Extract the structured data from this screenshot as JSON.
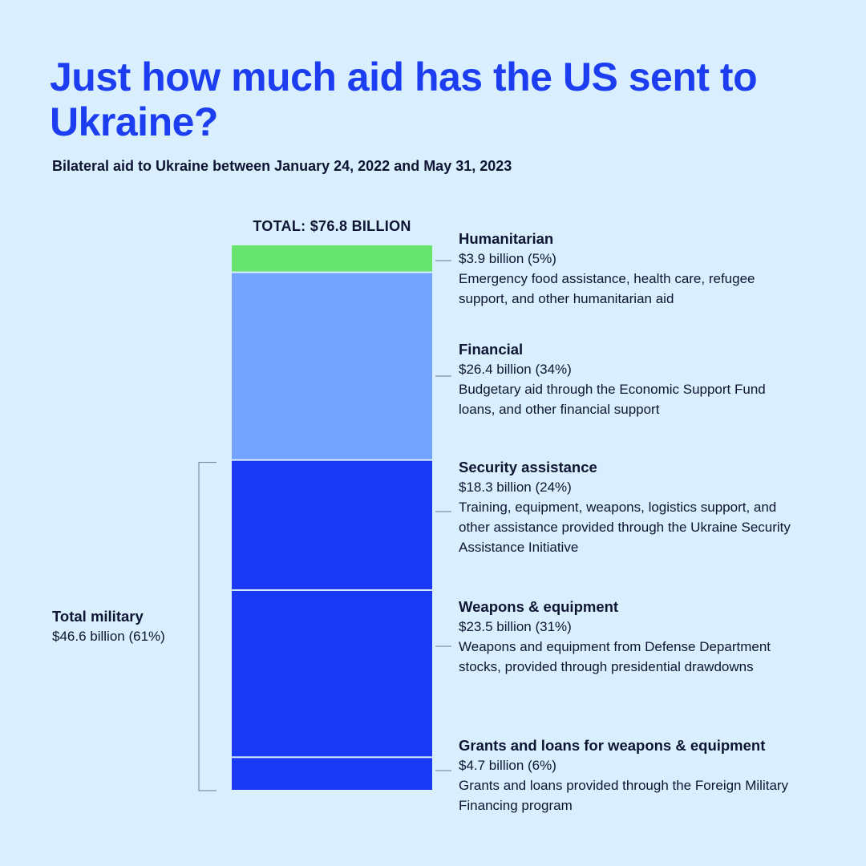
{
  "title": "Just how much aid has the US sent to Ukraine?",
  "subtitle": "Bilateral aid to Ukraine between January 24, 2022 and May 31, 2023",
  "total_label": "TOTAL: $76.8 BILLION",
  "colors": {
    "humanitarian": "#66e46e",
    "financial": "#73a2ff",
    "military": "#1a39f4",
    "title": "#1c3ef0",
    "background": "#d9effd"
  },
  "chart_data": {
    "type": "bar",
    "stacked": true,
    "unit": "billion USD",
    "total": 76.8,
    "categories": [
      "Humanitarian",
      "Financial",
      "Security assistance",
      "Weapons & equipment",
      "Grants and loans for weapons & equipment"
    ],
    "values": [
      3.9,
      26.4,
      18.3,
      23.5,
      4.7
    ],
    "percent": [
      5,
      34,
      24,
      31,
      6
    ],
    "segment_colors": [
      "#66e46e",
      "#73a2ff",
      "#1a39f4",
      "#1a39f4",
      "#1a39f4"
    ],
    "group": {
      "name": "Total military",
      "value": 46.6,
      "percent": 61,
      "members": [
        2,
        3,
        4
      ]
    }
  },
  "segments": [
    {
      "name": "Humanitarian",
      "value": "$3.9 billion (5%)",
      "desc": "Emergency food assistance, health care, refugee support, and other humanitarian aid"
    },
    {
      "name": "Financial",
      "value": "$26.4 billion (34%)",
      "desc": "Budgetary aid through the Economic Support Fund loans, and other financial support"
    },
    {
      "name": "Security assistance",
      "value": "$18.3 billion (24%)",
      "desc": "Training, equipment, weapons, logistics support, and other assistance provided through the Ukraine Security Assistance Initiative"
    },
    {
      "name": "Weapons & equipment",
      "value": "$23.5 billion (31%)",
      "desc": "Weapons and equipment from Defense Department stocks, provided through presidential drawdowns"
    },
    {
      "name": "Grants and loans for weapons & equipment",
      "value": "$4.7 billion (6%)",
      "desc": "Grants and loans provided through the Foreign Military Financing program"
    }
  ],
  "military": {
    "name": "Total military",
    "value": "$46.6 billion (61%)"
  }
}
